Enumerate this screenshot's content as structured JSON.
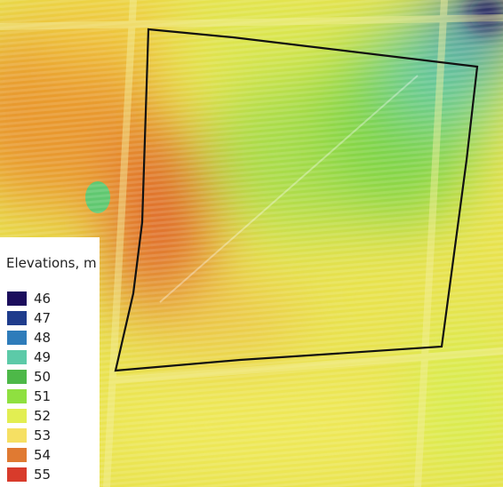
{
  "legend": {
    "title": "Elevations, m",
    "items": [
      {
        "value": 46,
        "color": "#1b0d5c"
      },
      {
        "value": 47,
        "color": "#1f3c8c"
      },
      {
        "value": 48,
        "color": "#2e7cba"
      },
      {
        "value": 49,
        "color": "#5ccaa8"
      },
      {
        "value": 50,
        "color": "#4db848"
      },
      {
        "value": 51,
        "color": "#8fe040"
      },
      {
        "value": 52,
        "color": "#e2ee52"
      },
      {
        "value": 53,
        "color": "#f6e063"
      },
      {
        "value": 54,
        "color": "#e07a32"
      },
      {
        "value": 55,
        "color": "#d83b2b"
      }
    ]
  }
}
